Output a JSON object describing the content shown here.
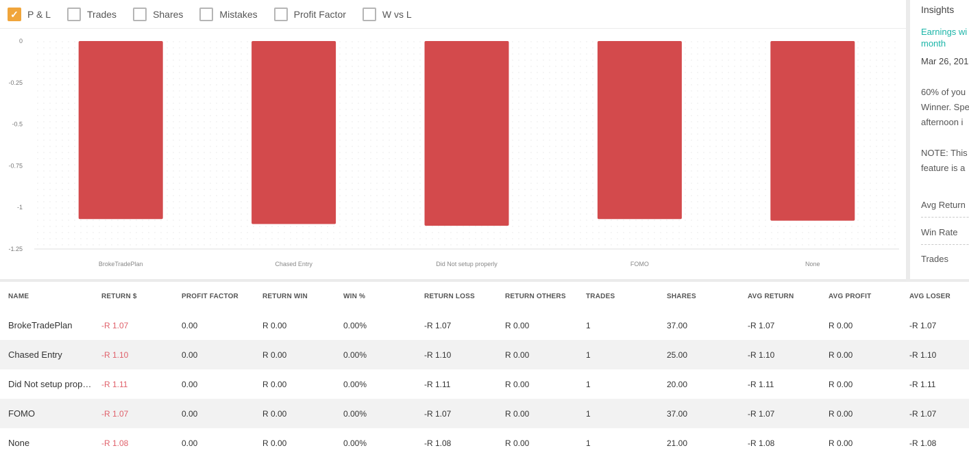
{
  "toggles": [
    {
      "label": "P & L",
      "checked": true
    },
    {
      "label": "Trades",
      "checked": false
    },
    {
      "label": "Shares",
      "checked": false
    },
    {
      "label": "Mistakes",
      "checked": false
    },
    {
      "label": "Profit Factor",
      "checked": false
    },
    {
      "label": "W vs L",
      "checked": false
    }
  ],
  "chart_data": {
    "type": "bar",
    "categories": [
      "BrokeTradePlan",
      "Chased Entry",
      "Did Not setup properly",
      "FOMO",
      "None"
    ],
    "values": [
      -1.07,
      -1.1,
      -1.11,
      -1.07,
      -1.08
    ],
    "y_ticks": [
      "0",
      "-0.25",
      "-0.5",
      "-0.75",
      "-1",
      "-1.25"
    ],
    "ylim": [
      -1.25,
      0
    ],
    "bar_color": "#d34a4c",
    "grid": true
  },
  "insights": {
    "title": "Insights",
    "link": "Earnings wi month",
    "date": "Mar 26, 201",
    "para1": [
      "60% of you",
      "Winner. Spe",
      "afternoon i"
    ],
    "para2": [
      "NOTE: This",
      "feature is a"
    ],
    "stats": [
      "Avg Return",
      "Win Rate",
      "Trades"
    ]
  },
  "table": {
    "columns": [
      "NAME",
      "RETURN $",
      "PROFIT FACTOR",
      "RETURN WIN",
      "WIN %",
      "RETURN LOSS",
      "RETURN OTHERS",
      "TRADES",
      "SHARES",
      "AVG RETURN",
      "AVG PROFIT",
      "AVG LOSER"
    ],
    "rows": [
      [
        "BrokeTradePlan",
        "-R 1.07",
        "0.00",
        "R 0.00",
        "0.00%",
        "-R 1.07",
        "R 0.00",
        "1",
        "37.00",
        "-R 1.07",
        "R 0.00",
        "-R 1.07"
      ],
      [
        "Chased Entry",
        "-R 1.10",
        "0.00",
        "R 0.00",
        "0.00%",
        "-R 1.10",
        "R 0.00",
        "1",
        "25.00",
        "-R 1.10",
        "R 0.00",
        "-R 1.10"
      ],
      [
        "Did Not setup properly",
        "-R 1.11",
        "0.00",
        "R 0.00",
        "0.00%",
        "-R 1.11",
        "R 0.00",
        "1",
        "20.00",
        "-R 1.11",
        "R 0.00",
        "-R 1.11"
      ],
      [
        "FOMO",
        "-R 1.07",
        "0.00",
        "R 0.00",
        "0.00%",
        "-R 1.07",
        "R 0.00",
        "1",
        "37.00",
        "-R 1.07",
        "R 0.00",
        "-R 1.07"
      ],
      [
        "None",
        "-R 1.08",
        "0.00",
        "R 0.00",
        "0.00%",
        "-R 1.08",
        "R 0.00",
        "1",
        "21.00",
        "-R 1.08",
        "R 0.00",
        "-R 1.08"
      ]
    ]
  }
}
